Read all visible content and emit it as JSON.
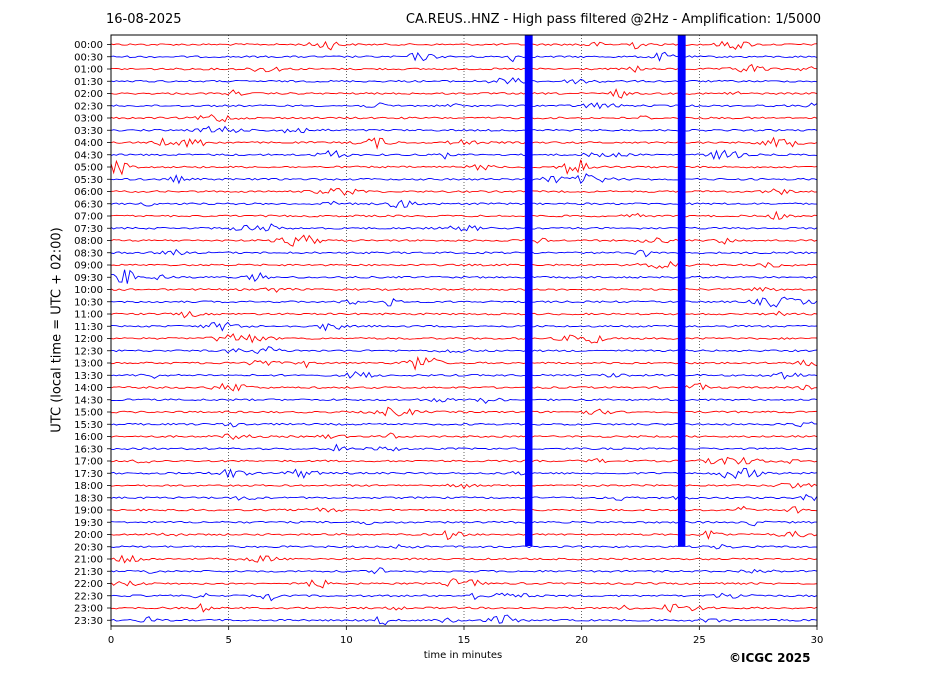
{
  "header": {
    "date": "16-08-2025",
    "title": "CA.REUS..HNZ - High pass filtered @2Hz - Amplification: 1/5000"
  },
  "footer": {
    "copyright": "©ICGC 2025"
  },
  "chart_data": {
    "type": "line",
    "title": "CA.REUS..HNZ - High pass filtered @2Hz - Amplification: 1/5000",
    "xlabel": "time in minutes",
    "ylabel": "UTC (local time = UTC + 02:00)",
    "xlim": [
      0,
      30
    ],
    "xticks": [
      0,
      5,
      10,
      15,
      20,
      25,
      30
    ],
    "x_gridlines": [
      5,
      10,
      15,
      20,
      25
    ],
    "grid": "vertical dotted",
    "row_labels": [
      "00:00",
      "00:30",
      "01:00",
      "01:30",
      "02:00",
      "02:30",
      "03:00",
      "03:30",
      "04:00",
      "04:30",
      "05:00",
      "05:30",
      "06:00",
      "06:30",
      "07:00",
      "07:30",
      "08:00",
      "08:30",
      "09:00",
      "09:30",
      "10:00",
      "10:30",
      "11:00",
      "11:30",
      "12:00",
      "12:30",
      "13:00",
      "13:30",
      "14:00",
      "14:30",
      "15:00",
      "15:30",
      "16:00",
      "16:30",
      "17:00",
      "17:30",
      "18:00",
      "18:30",
      "19:00",
      "19:30",
      "20:00",
      "20:30",
      "21:00",
      "21:30",
      "22:00",
      "22:30",
      "23:00",
      "23:30"
    ],
    "row_colors": [
      "#ff0000",
      "#0000ff"
    ],
    "events": [
      {
        "row": 0,
        "start": 17.6,
        "end": 17.9,
        "amp": 1.0
      },
      {
        "row": 0,
        "start": 24.1,
        "end": 24.4,
        "amp": 1.0
      }
    ]
  }
}
